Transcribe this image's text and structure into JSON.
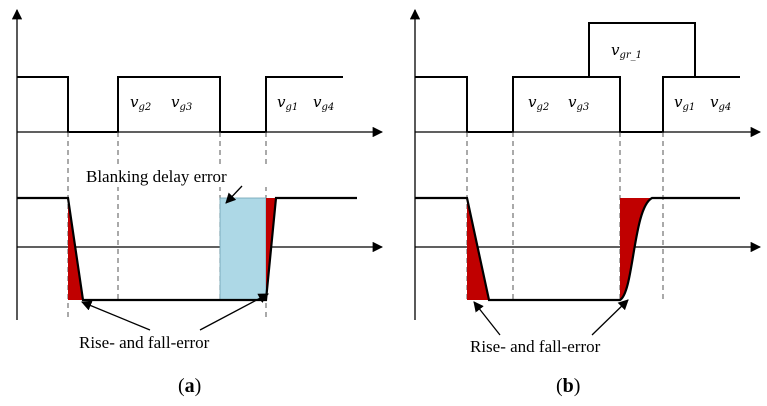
{
  "panel_a": {
    "gate_labels": {
      "g2": {
        "v": "v",
        "sub": "g2"
      },
      "g3": {
        "v": "v",
        "sub": "g3"
      },
      "g1": {
        "v": "v",
        "sub": "g1"
      },
      "g4": {
        "v": "v",
        "sub": "g4"
      }
    },
    "blanking_label": "Blanking delay error",
    "rise_fall_label": "Rise- and fall-error",
    "caption": {
      "open": "(",
      "letter": "a",
      "close": ")"
    }
  },
  "panel_b": {
    "gate_labels": {
      "gr1": {
        "v": "v",
        "sub": "gr_1"
      },
      "g2": {
        "v": "v",
        "sub": "g2"
      },
      "g3": {
        "v": "v",
        "sub": "g3"
      },
      "g1": {
        "v": "v",
        "sub": "g1"
      },
      "g4": {
        "v": "v",
        "sub": "g4"
      }
    },
    "rise_fall_label": "Rise- and fall-error",
    "caption": {
      "open": "(",
      "letter": "b",
      "close": ")"
    }
  },
  "colors": {
    "error_fill": "#c00000",
    "blanking_fill": "#add8e6",
    "line": "#000000",
    "dashed": "#555555"
  }
}
